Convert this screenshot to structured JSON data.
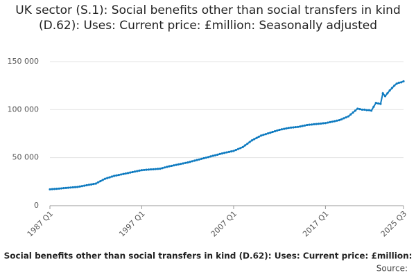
{
  "chart_data": {
    "type": "line",
    "title": "UK sector (S.1): Social benefits other than social transfers in kind (D.62): Uses: Current price: £million: Seasonally adjusted",
    "footer": "Social benefits other than social transfers in kind (D.62): Uses: Current price: £million:",
    "source": "Source:",
    "categories": [
      "1987 Q1",
      null,
      null,
      null,
      null,
      null,
      null,
      null,
      null,
      null,
      null,
      null,
      null,
      null,
      null,
      null,
      null,
      null,
      null,
      null,
      null,
      null,
      null,
      null,
      null,
      null,
      null,
      null,
      null,
      null,
      null,
      null,
      null,
      null,
      null,
      null,
      null,
      null,
      null,
      null,
      "1997 Q1",
      null,
      null,
      null,
      null,
      null,
      null,
      null,
      null,
      null,
      null,
      null,
      null,
      null,
      null,
      null,
      null,
      null,
      null,
      null,
      null,
      null,
      null,
      null,
      null,
      null,
      null,
      null,
      null,
      null,
      null,
      null,
      null,
      null,
      null,
      null,
      null,
      null,
      null,
      null,
      "2007 Q1",
      null,
      null,
      null,
      null,
      null,
      null,
      null,
      null,
      null,
      null,
      null,
      null,
      null,
      null,
      null,
      null,
      null,
      null,
      null,
      null,
      null,
      null,
      null,
      null,
      null,
      null,
      null,
      null,
      null,
      null,
      null,
      null,
      null,
      null,
      null,
      null,
      null,
      null,
      null,
      "2017 Q1",
      null,
      null,
      null,
      null,
      null,
      null,
      null,
      null,
      null,
      null,
      null,
      null,
      null,
      null,
      null,
      null,
      null,
      null,
      null,
      null,
      null,
      null,
      null,
      null,
      null,
      null,
      null,
      null,
      null,
      null,
      null,
      null,
      null,
      "2025 Q3"
    ],
    "series": [
      {
        "name": "Social benefits",
        "color": "#0f7bc0",
        "values": [
          17000,
          17200,
          17400,
          17600,
          17800,
          18000,
          18300,
          18500,
          18700,
          18900,
          19100,
          19300,
          19500,
          19900,
          20400,
          20800,
          21300,
          21700,
          22100,
          22600,
          23000,
          24300,
          25500,
          26800,
          28000,
          28800,
          29500,
          30300,
          31000,
          31500,
          32000,
          32500,
          33000,
          33500,
          34000,
          34500,
          35000,
          35500,
          36000,
          36500,
          37000,
          37200,
          37400,
          37600,
          37800,
          37900,
          38100,
          38300,
          38500,
          39100,
          39800,
          40400,
          41000,
          41500,
          42000,
          42500,
          43000,
          43500,
          44000,
          44500,
          45000,
          45600,
          46300,
          46900,
          47500,
          48100,
          48800,
          49400,
          50000,
          50600,
          51300,
          51900,
          52500,
          53100,
          53800,
          54400,
          55000,
          55500,
          56000,
          56500,
          57000,
          58000,
          59000,
          60000,
          61000,
          62800,
          64500,
          66300,
          68000,
          69300,
          70500,
          71800,
          73000,
          73800,
          74500,
          75300,
          76000,
          76800,
          77500,
          78300,
          79000,
          79500,
          80000,
          80500,
          81000,
          81300,
          81500,
          81800,
          82000,
          82500,
          83000,
          83500,
          84000,
          84300,
          84500,
          84800,
          85000,
          85300,
          85500,
          85800,
          86000,
          86500,
          87000,
          87500,
          88000,
          88500,
          89000,
          90000,
          91000,
          92000,
          93000,
          95000,
          97000,
          99000,
          101000,
          100500,
          100000,
          100000,
          99500,
          99500,
          99000,
          103000,
          107000,
          106500,
          106000,
          117000,
          114000,
          117000,
          120000,
          122500,
          125000,
          127000,
          128000,
          128500,
          129500
        ]
      }
    ],
    "ylim": [
      0,
      150000
    ],
    "yticks": [
      0,
      {
        "value": 50000,
        "label": "50 000"
      },
      {
        "value": 100000,
        "label": "100 000"
      },
      {
        "value": 150000,
        "label": "150 000"
      }
    ],
    "grid": true
  }
}
